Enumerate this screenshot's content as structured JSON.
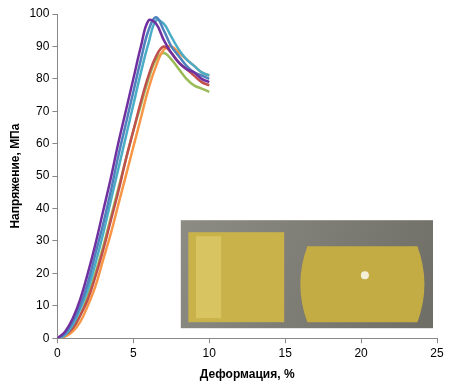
{
  "chart_data": {
    "type": "line",
    "x_label": "Деформация, %",
    "y_label": "Напряжение, МПа",
    "x": [
      0,
      0.5,
      1,
      1.5,
      2,
      2.5,
      3,
      3.5,
      4,
      4.5,
      5,
      5.5,
      6,
      6.5,
      7,
      7.5,
      8,
      8.5,
      9,
      9.5,
      10
    ],
    "series": [
      {
        "color": "#7030a0",
        "values": [
          0,
          2,
          6,
          12,
          20,
          29,
          39,
          49,
          60,
          70,
          80,
          90,
          98,
          97,
          92,
          88,
          85,
          83,
          82,
          80,
          79
        ]
      },
      {
        "color": "#4f81bd",
        "values": [
          0,
          1.5,
          5,
          10,
          17,
          26,
          35,
          45,
          56,
          66,
          76,
          86,
          95,
          99,
          95,
          90,
          87,
          84,
          82,
          81,
          80
        ]
      },
      {
        "color": "#4bacc6",
        "values": [
          0,
          1,
          4,
          9,
          15,
          23,
          32,
          42,
          52,
          62,
          72,
          82,
          91,
          98,
          97,
          93,
          89,
          86,
          84,
          82,
          81
        ]
      },
      {
        "color": "#c0504d",
        "values": [
          0,
          1,
          3,
          7,
          12,
          19,
          27,
          36,
          45,
          55,
          64,
          73,
          81,
          87,
          90,
          88,
          85,
          83,
          81,
          79,
          78
        ]
      },
      {
        "color": "#f79646",
        "values": [
          0,
          0.5,
          2,
          5,
          10,
          16,
          24,
          32,
          41,
          50,
          59,
          68,
          77,
          84,
          89,
          90,
          88,
          86,
          84,
          82,
          81
        ]
      },
      {
        "color": "#9bbb59",
        "values": [
          0,
          1,
          3,
          7,
          13,
          20,
          28,
          37,
          46,
          55,
          64,
          72,
          80,
          86,
          88,
          86,
          83,
          80,
          78,
          77,
          76
        ]
      }
    ],
    "xlim": [
      0,
      25
    ],
    "xticks": [
      0,
      5,
      10,
      15,
      20,
      25
    ],
    "ylim": [
      0,
      100
    ],
    "yticks": [
      0,
      10,
      20,
      30,
      40,
      50,
      60,
      70,
      80,
      90,
      100
    ],
    "grid": false
  }
}
